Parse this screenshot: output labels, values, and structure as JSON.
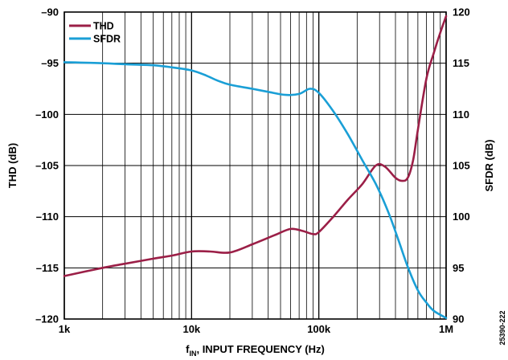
{
  "chart_data": {
    "type": "line",
    "x_scale": "log",
    "xlim": [
      1000,
      1000000
    ],
    "ylim_left": [
      -120,
      -90
    ],
    "ylim_right": [
      90,
      120
    ],
    "grid": true,
    "legend_position": "top-left",
    "xlabel_main": "f",
    "xlabel_sub": "IN",
    "xlabel_rest": ", INPUT FREQUENCY (Hz)",
    "ylabel_left": "THD (dB)",
    "ylabel_right": "SFDR (dB)",
    "x_ticks": [
      {
        "value": 1000,
        "label": "1k"
      },
      {
        "value": 10000,
        "label": "10k"
      },
      {
        "value": 100000,
        "label": "100k"
      },
      {
        "value": 1000000,
        "label": "1M"
      }
    ],
    "y_ticks_left": [
      {
        "value": -90,
        "label": "–90"
      },
      {
        "value": -95,
        "label": "–95"
      },
      {
        "value": -100,
        "label": "–100"
      },
      {
        "value": -105,
        "label": "–105"
      },
      {
        "value": -110,
        "label": "–110"
      },
      {
        "value": -115,
        "label": "–115"
      },
      {
        "value": -120,
        "label": "–120"
      }
    ],
    "y_ticks_right": [
      {
        "value": 120,
        "label": "120"
      },
      {
        "value": 115,
        "label": "115"
      },
      {
        "value": 110,
        "label": "110"
      },
      {
        "value": 105,
        "label": "105"
      },
      {
        "value": 100,
        "label": "100"
      },
      {
        "value": 95,
        "label": "95"
      },
      {
        "value": 90,
        "label": "90"
      }
    ],
    "figure_id": "25390-222",
    "series": [
      {
        "name": "THD",
        "axis": "left",
        "color": "#9b1f47",
        "x": [
          1000,
          2000,
          3000,
          5000,
          7000,
          10000,
          14000,
          20000,
          30000,
          45000,
          60000,
          75000,
          90000,
          100000,
          130000,
          170000,
          220000,
          280000,
          330000,
          400000,
          450000,
          500000,
          550000,
          600000,
          700000,
          800000,
          900000,
          1000000
        ],
        "values": [
          -115.8,
          -115.0,
          -114.6,
          -114.1,
          -113.8,
          -113.4,
          -113.4,
          -113.5,
          -112.7,
          -111.8,
          -111.2,
          -111.4,
          -111.7,
          -111.5,
          -110.0,
          -108.3,
          -106.8,
          -105.0,
          -105.1,
          -106.2,
          -106.5,
          -106.2,
          -104.5,
          -101.5,
          -96.5,
          -94.0,
          -92.0,
          -90.4
        ]
      },
      {
        "name": "SFDR",
        "axis": "right",
        "color": "#1a9fd6",
        "x": [
          1000,
          2000,
          3000,
          5000,
          7000,
          10000,
          13000,
          16000,
          20000,
          30000,
          40000,
          55000,
          70000,
          85000,
          100000,
          130000,
          170000,
          220000,
          280000,
          350000,
          420000,
          500000,
          600000,
          700000,
          800000,
          1000000
        ],
        "values": [
          115.1,
          115.0,
          114.9,
          114.8,
          114.6,
          114.3,
          113.8,
          113.3,
          112.9,
          112.5,
          112.2,
          111.9,
          112.0,
          112.5,
          112.1,
          110.3,
          108.0,
          105.5,
          103.2,
          100.5,
          97.8,
          95.1,
          92.8,
          91.6,
          90.8,
          90.1
        ]
      }
    ]
  }
}
